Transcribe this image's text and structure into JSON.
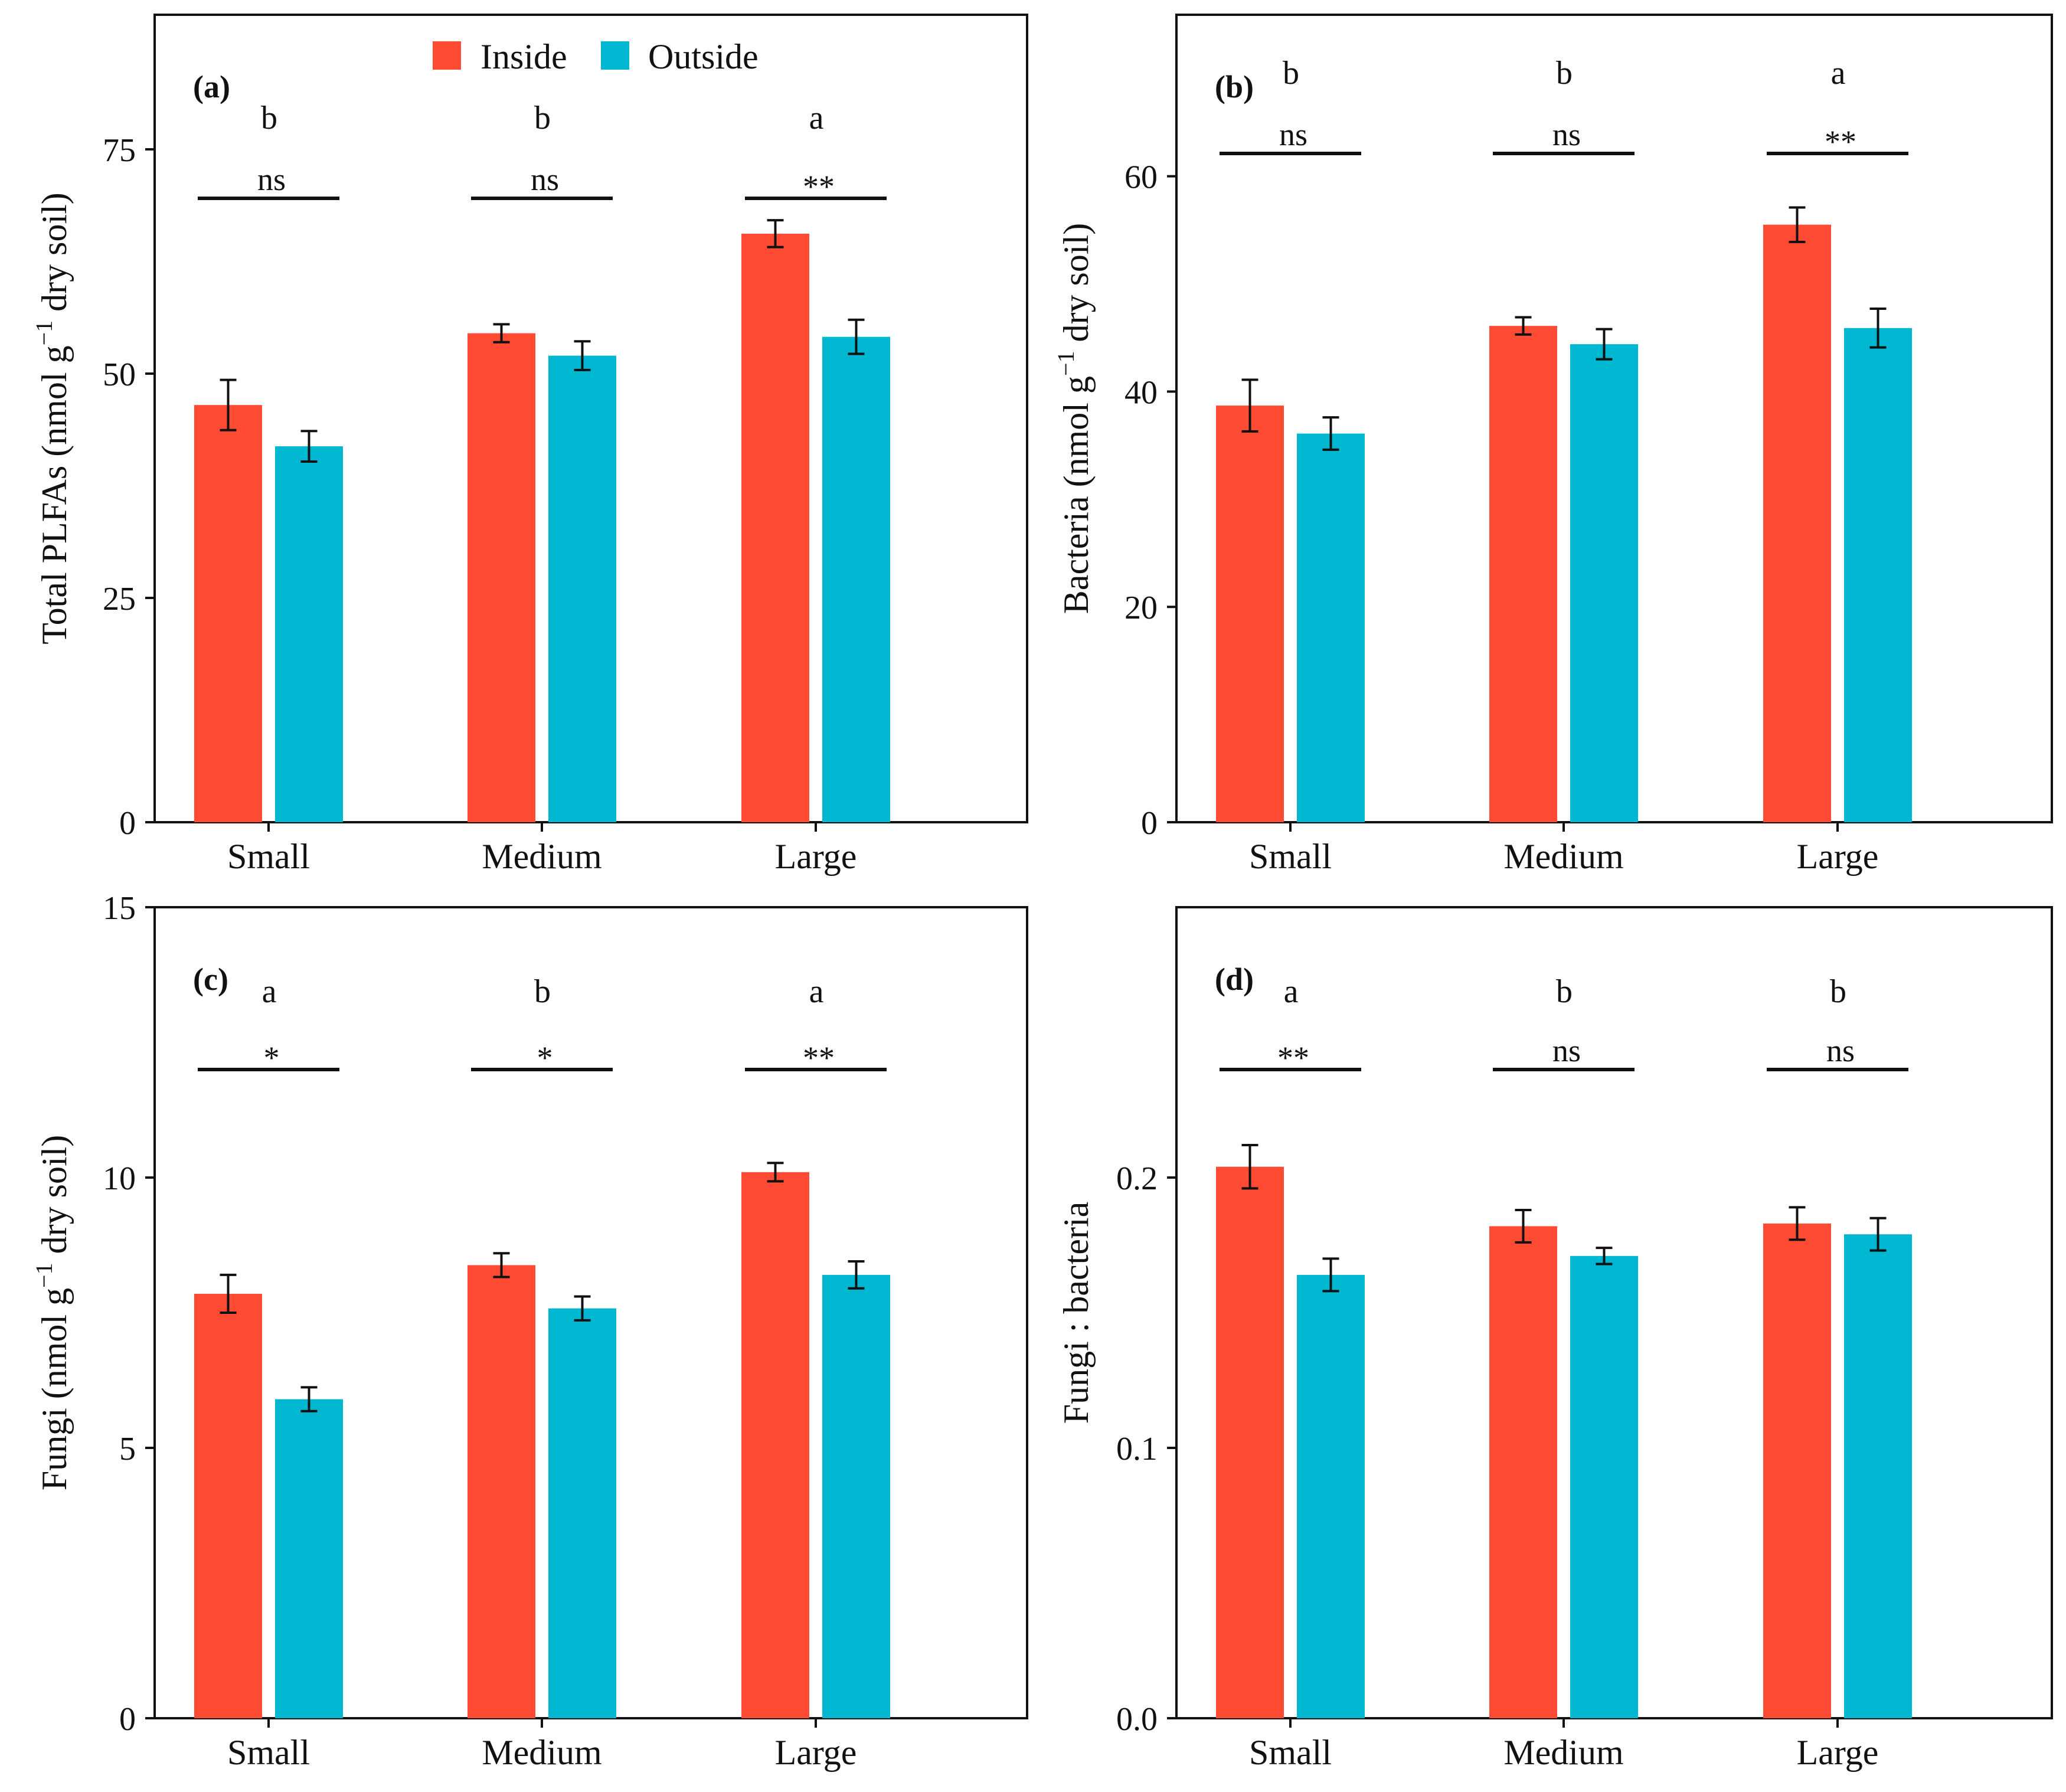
{
  "legend": {
    "items": [
      {
        "label": "Inside",
        "color": "#ff4b33"
      },
      {
        "label": "Outside",
        "color": "#00b7d1"
      }
    ]
  },
  "chart_data": [
    {
      "panel": "(a)",
      "type": "bar",
      "categories": [
        "Small",
        "Medium",
        "Large"
      ],
      "ylabel": "Total PLFAs (nmol  g",
      "ylabel_sup": "−1",
      "ylabel_tail": "  dry soil)",
      "ylim": [
        0,
        90
      ],
      "yticks": [
        0,
        25,
        50,
        75
      ],
      "series": [
        {
          "name": "Inside",
          "values": [
            46.5,
            54.5,
            65.6
          ],
          "errors": [
            2.8,
            1.0,
            1.5
          ]
        },
        {
          "name": "Outside",
          "values": [
            41.9,
            52.0,
            54.1
          ],
          "errors": [
            1.7,
            1.6,
            1.9
          ]
        }
      ],
      "group_letters": [
        "b",
        "b",
        "a"
      ],
      "significance": [
        "ns",
        "ns",
        "**"
      ]
    },
    {
      "panel": "(b)",
      "type": "bar",
      "categories": [
        "Small",
        "Medium",
        "Large"
      ],
      "ylabel": "Bacteria (nmol  g",
      "ylabel_sup": "−1",
      "ylabel_tail": "  dry soil)",
      "ylim": [
        0,
        75
      ],
      "yticks": [
        0,
        20,
        40,
        60
      ],
      "series": [
        {
          "name": "Inside",
          "values": [
            38.7,
            46.1,
            55.5
          ],
          "errors": [
            2.4,
            0.8,
            1.6
          ]
        },
        {
          "name": "Outside",
          "values": [
            36.1,
            44.4,
            45.9
          ],
          "errors": [
            1.5,
            1.4,
            1.8
          ]
        }
      ],
      "group_letters": [
        "b",
        "b",
        "a"
      ],
      "significance": [
        "ns",
        "ns",
        "**"
      ]
    },
    {
      "panel": "(c)",
      "type": "bar",
      "categories": [
        "Small",
        "Medium",
        "Large"
      ],
      "ylabel": "Fungi (nmol  g",
      "ylabel_sup": "−1",
      "ylabel_tail": "  dry soil)",
      "ylim": [
        0,
        15
      ],
      "yticks": [
        0,
        5,
        10,
        15
      ],
      "series": [
        {
          "name": "Inside",
          "values": [
            7.85,
            8.38,
            10.1
          ],
          "errors": [
            0.35,
            0.22,
            0.17
          ]
        },
        {
          "name": "Outside",
          "values": [
            5.9,
            7.58,
            8.2
          ],
          "errors": [
            0.22,
            0.22,
            0.25
          ]
        }
      ],
      "group_letters": [
        "a",
        "b",
        "a"
      ],
      "significance": [
        "*",
        "*",
        "**"
      ]
    },
    {
      "panel": "(d)",
      "type": "bar",
      "categories": [
        "Small",
        "Medium",
        "Large"
      ],
      "ylabel": "Fungi : bacteria",
      "ylabel_sup": "",
      "ylabel_tail": "",
      "ylim": [
        0,
        0.3
      ],
      "yticks": [
        0.0,
        0.1,
        0.2
      ],
      "ytick_labels": [
        "0.0",
        "0.1",
        "0.2"
      ],
      "series": [
        {
          "name": "Inside",
          "values": [
            0.204,
            0.182,
            0.183
          ],
          "errors": [
            0.008,
            0.006,
            0.006
          ]
        },
        {
          "name": "Outside",
          "values": [
            0.164,
            0.171,
            0.179
          ],
          "errors": [
            0.006,
            0.003,
            0.006
          ]
        }
      ],
      "group_letters": [
        "a",
        "b",
        "b"
      ],
      "significance": [
        "**",
        "ns",
        "ns"
      ]
    }
  ]
}
